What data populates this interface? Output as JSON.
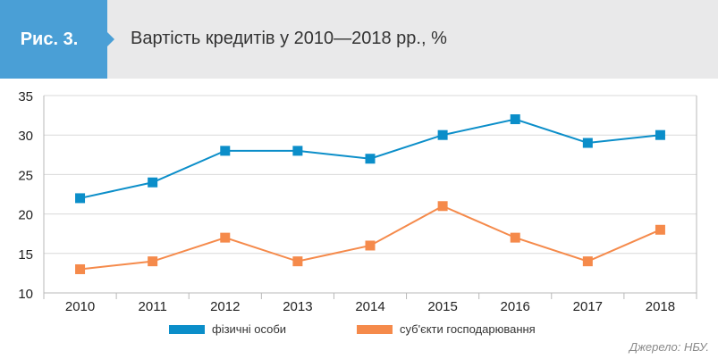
{
  "figure": {
    "label": "Рис. 3.",
    "title": "Вартість кредитів у 2010—2018 рр., %"
  },
  "source": "Джерело: НБУ.",
  "colors": {
    "header_bg": "#e9e9ea",
    "badge_bg": "#4a9fd6",
    "series_blue": "#0b8ec9",
    "series_orange": "#f58a4b",
    "grid": "#d9d9d9",
    "frame": "#b8b8b8"
  },
  "chart_data": {
    "type": "line",
    "x": [
      "2010",
      "2011",
      "2012",
      "2013",
      "2014",
      "2015",
      "2016",
      "2017",
      "2018"
    ],
    "ylim": [
      10,
      35
    ],
    "yticks": [
      10,
      15,
      20,
      25,
      30,
      35
    ],
    "grid": true,
    "legend_position": "bottom",
    "series": [
      {
        "name": "фізичні особи",
        "color": "#0b8ec9",
        "marker": "square",
        "values": [
          22,
          24,
          28,
          28,
          27,
          30,
          32,
          29,
          30
        ]
      },
      {
        "name": "суб'єкти господарювання",
        "color": "#f58a4b",
        "marker": "square",
        "values": [
          13,
          14,
          17,
          14,
          16,
          21,
          17,
          14,
          18
        ]
      }
    ]
  }
}
